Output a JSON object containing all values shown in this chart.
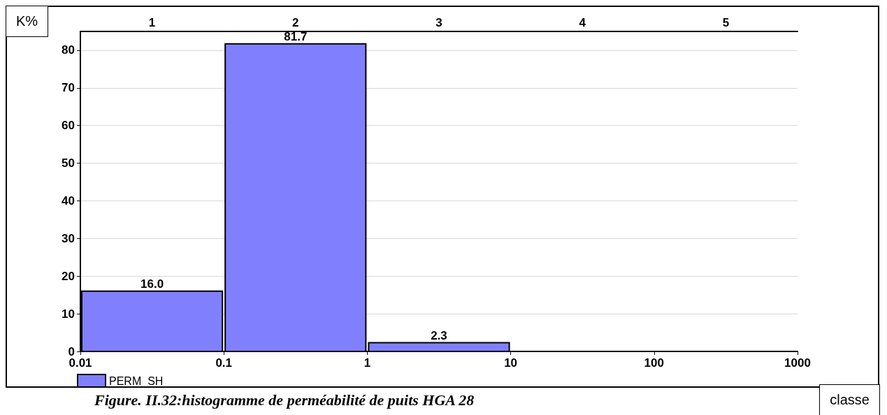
{
  "chart_data": {
    "type": "histogram",
    "ylabel": "K%",
    "xlabel": "classe",
    "annotations": [
      "Figure. II.32:histogramme de perméabilité de puits HGA 28"
    ],
    "bins": [
      0.01,
      0.1,
      1,
      10,
      100,
      1000
    ],
    "series": [
      {
        "name": "PERM_SH",
        "color": "#8080ff",
        "values": [
          16.0,
          81.7,
          2.3,
          0,
          0
        ],
        "value_labels": [
          "16.0",
          "81.7",
          "2.3",
          null,
          null
        ]
      }
    ],
    "log": "x",
    "xlim": [
      0.01,
      1000
    ],
    "xticks": [
      0.01,
      0.1,
      1,
      10,
      100,
      1000
    ],
    "x2lim": [
      0.5,
      5.5
    ],
    "x2ticks": [
      1,
      2,
      3,
      4,
      5
    ],
    "ylim": [
      0,
      85
    ],
    "yticks": [
      0,
      10,
      20,
      30,
      40,
      50,
      60,
      70,
      80
    ],
    "grid": "y",
    "legend": "bottom left"
  }
}
